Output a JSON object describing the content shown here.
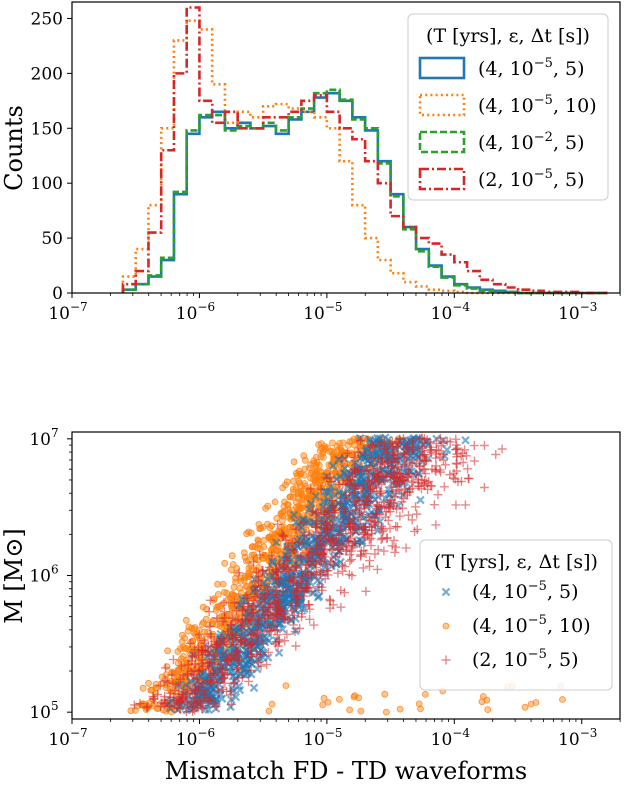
{
  "chart_data": [
    {
      "type": "histogram",
      "title": "",
      "xlabel": "",
      "ylabel": "Counts",
      "xscale": "log",
      "xlim": [
        -7,
        -2.7
      ],
      "ylim": [
        0,
        265
      ],
      "xticks": [
        {
          "exp": -7,
          "label": "10",
          "sup": "−7"
        },
        {
          "exp": -6,
          "label": "10",
          "sup": "−6"
        },
        {
          "exp": -5,
          "label": "10",
          "sup": "−5"
        },
        {
          "exp": -4,
          "label": "10",
          "sup": "−4"
        },
        {
          "exp": -3,
          "label": "10",
          "sup": "−3"
        }
      ],
      "yticks": [
        0,
        50,
        100,
        150,
        200,
        250
      ],
      "legend": {
        "title": "(T [yrs], ε, Δt [s])",
        "placement": "top-right",
        "entries": [
          "(4, 10^-5, 5)",
          "(4, 10^-5, 10)",
          "(4, 10^-2, 5)",
          "(2, 10^-5, 5)"
        ]
      },
      "bin_edges_log10": [
        -6.6,
        -6.5,
        -6.4,
        -6.3,
        -6.2,
        -6.1,
        -6.0,
        -5.9,
        -5.8,
        -5.7,
        -5.6,
        -5.5,
        -5.4,
        -5.3,
        -5.2,
        -5.1,
        -5.0,
        -4.9,
        -4.8,
        -4.7,
        -4.6,
        -4.5,
        -4.4,
        -4.3,
        -4.2,
        -4.1,
        -4.0,
        -3.9,
        -3.8,
        -3.7,
        -3.6,
        -3.5,
        -3.4,
        -3.3,
        -3.2,
        -3.1,
        -3.0,
        -2.9,
        -2.8
      ],
      "series": [
        {
          "name": "(4, 10^-5, 5)",
          "color": "#1f77b4",
          "style": "solid",
          "values": [
            3,
            8,
            15,
            30,
            90,
            145,
            160,
            165,
            150,
            155,
            150,
            152,
            145,
            158,
            165,
            178,
            182,
            175,
            160,
            148,
            120,
            90,
            60,
            40,
            25,
            15,
            8,
            5,
            3,
            2,
            1,
            0,
            0,
            0,
            0,
            0,
            0,
            0
          ]
        },
        {
          "name": "(4, 10^-5, 10)",
          "color": "#ff7f0e",
          "style": "dotted",
          "values": [
            15,
            40,
            80,
            150,
            230,
            248,
            240,
            190,
            155,
            165,
            160,
            170,
            172,
            168,
            165,
            160,
            150,
            120,
            80,
            50,
            30,
            18,
            10,
            6,
            3,
            2,
            1,
            0,
            0,
            0,
            0,
            0,
            0,
            0,
            0,
            0,
            0,
            0
          ]
        },
        {
          "name": "(4, 10^-2, 5)",
          "color": "#2ca02c",
          "style": "dashed",
          "values": [
            3,
            8,
            16,
            32,
            92,
            148,
            162,
            162,
            148,
            152,
            150,
            155,
            148,
            160,
            168,
            182,
            185,
            176,
            158,
            150,
            118,
            88,
            58,
            38,
            24,
            14,
            7,
            4,
            2,
            1,
            1,
            0,
            0,
            0,
            0,
            0,
            0,
            0
          ]
        },
        {
          "name": "(2, 10^-5, 5)",
          "color": "#d62728",
          "style": "dashdot",
          "values": [
            8,
            20,
            55,
            130,
            200,
            260,
            175,
            155,
            165,
            150,
            150,
            160,
            160,
            165,
            175,
            180,
            165,
            150,
            140,
            120,
            100,
            70,
            60,
            50,
            45,
            35,
            28,
            20,
            12,
            8,
            5,
            3,
            2,
            1,
            1,
            1,
            0,
            0
          ]
        }
      ]
    },
    {
      "type": "scatter",
      "title": "",
      "xlabel": "Mismatch FD - TD waveforms",
      "ylabel": "M [M⊙]",
      "xscale": "log",
      "yscale": "log",
      "xlim": [
        -7,
        -2.7
      ],
      "ylim": [
        4.95,
        7.05
      ],
      "xticks": [
        {
          "exp": -7,
          "label": "10",
          "sup": "−7"
        },
        {
          "exp": -6,
          "label": "10",
          "sup": "−6"
        },
        {
          "exp": -5,
          "label": "10",
          "sup": "−5"
        },
        {
          "exp": -4,
          "label": "10",
          "sup": "−4"
        },
        {
          "exp": -3,
          "label": "10",
          "sup": "−3"
        }
      ],
      "yticks": [
        {
          "exp": 5,
          "label": "10",
          "sup": "5"
        },
        {
          "exp": 6,
          "label": "10",
          "sup": "6"
        },
        {
          "exp": 7,
          "label": "10",
          "sup": "7"
        }
      ],
      "legend": {
        "title": "(T [yrs], ε, Δt [s])",
        "placement": "lower-right",
        "entries": [
          "(4, 10^-5, 5)",
          "(4, 10^-5, 10)",
          "(2, 10^-5, 5)"
        ]
      },
      "series": [
        {
          "name": "(4, 10^-5, 5)",
          "color": "#1f77b4",
          "marker": "x",
          "trend_log10": {
            "mass_range": [
              5.0,
              7.0
            ],
            "x_at_low_mass": [
              -6.3,
              -5.8
            ],
            "x_at_high_mass": [
              -4.9,
              -3.9
            ]
          }
        },
        {
          "name": "(4, 10^-5, 10)",
          "color": "#ff7f0e",
          "marker": "o",
          "trend_log10": {
            "mass_range": [
              5.0,
              7.0
            ],
            "x_at_low_mass": [
              -6.6,
              -6.0
            ],
            "x_at_high_mass": [
              -5.2,
              -4.3
            ]
          },
          "outlier_band": {
            "mass_log10": [
              5.0,
              5.2
            ],
            "x_log10": [
              -5.5,
              -3.1
            ]
          }
        },
        {
          "name": "(2, 10^-5, 5)",
          "color": "#d62728",
          "marker": "+",
          "trend_log10": {
            "mass_range": [
              5.0,
              7.0
            ],
            "x_at_low_mass": [
              -6.6,
              -5.8
            ],
            "x_at_high_mass": [
              -5.0,
              -3.3
            ]
          }
        }
      ]
    }
  ]
}
